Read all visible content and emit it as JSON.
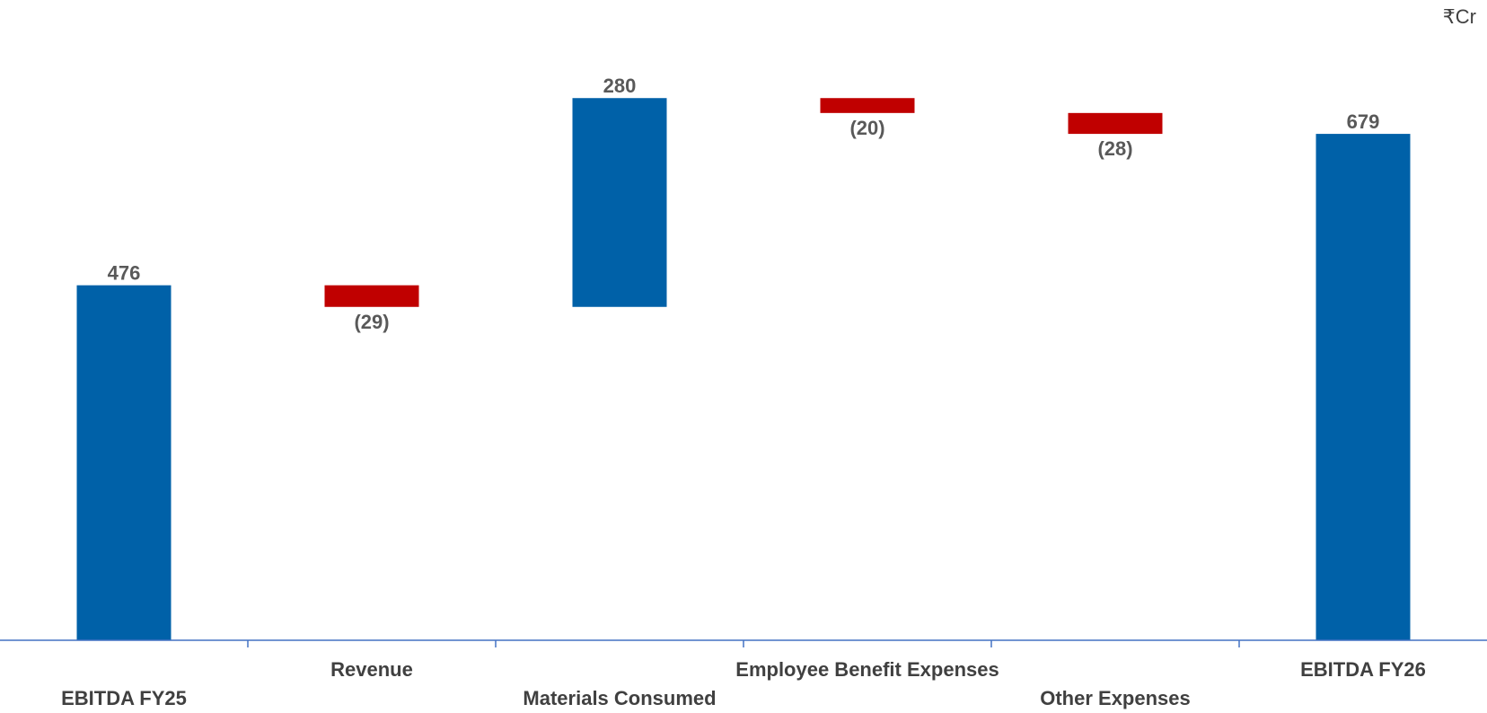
{
  "chart_data": {
    "type": "bar",
    "subtype": "waterfall",
    "unit": "₹Cr",
    "categories": [
      "EBITDA FY25",
      "Revenue",
      "Materials Consumed",
      "Employee Benefit Expenses",
      "Other Expenses",
      "EBITDA FY26"
    ],
    "values": [
      476,
      -29,
      280,
      -20,
      -28,
      679
    ],
    "value_labels": [
      "476",
      "(29)",
      "280",
      "(20)",
      "(28)",
      "679"
    ],
    "kinds": [
      "total",
      "delta",
      "delta",
      "delta",
      "delta",
      "total"
    ],
    "ylim": [
      0,
      780
    ],
    "grid": false,
    "legend": "none",
    "colors": {
      "total": "#0061a8",
      "increase": "#0061a8",
      "decrease": "#c00000",
      "axis": "#4472c4",
      "label": "#595959"
    }
  }
}
